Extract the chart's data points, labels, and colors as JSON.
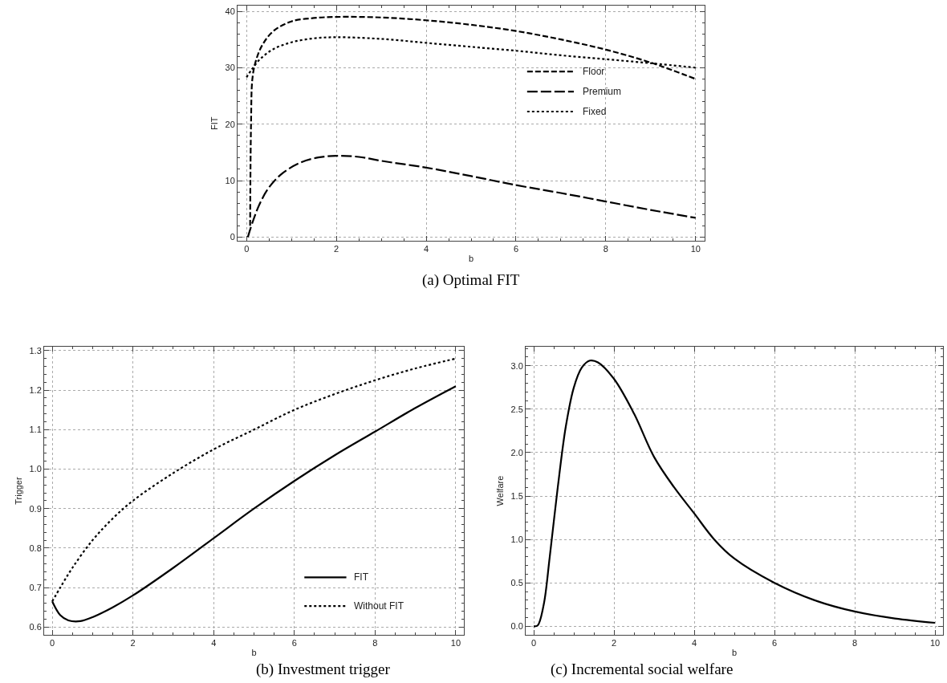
{
  "chart_data": [
    {
      "type": "line",
      "xlabel": "b",
      "ylabel": "FIT",
      "annotations": [
        "(a) Optimal FIT"
      ],
      "xlim": [
        -0.2,
        10.2
      ],
      "ylim": [
        -0.7,
        41
      ],
      "xticks": [
        0,
        2,
        4,
        6,
        8,
        10
      ],
      "yticks": [
        0,
        10,
        20,
        30,
        40
      ],
      "grid": true,
      "legend": "right",
      "series": [
        {
          "name": "Floor",
          "color": "#000000",
          "line_style": "dashed",
          "x": [
            0.08,
            0.1,
            0.13,
            0.2,
            0.35,
            0.6,
            1,
            1.5,
            2,
            3,
            4,
            5,
            6,
            7,
            8,
            9,
            10
          ],
          "values": [
            2,
            20,
            28,
            31,
            34,
            36.5,
            38.2,
            38.8,
            39,
            38.9,
            38.4,
            37.6,
            36.5,
            35,
            33.2,
            30.9,
            28
          ]
        },
        {
          "name": "Premium",
          "color": "#000000",
          "line_style": "longdash",
          "x": [
            0.03,
            0.15,
            0.3,
            0.5,
            0.8,
            1.2,
            1.6,
            2,
            2.5,
            3,
            4,
            5,
            6,
            7,
            8,
            9,
            10
          ],
          "values": [
            0,
            3,
            6,
            8.8,
            11.3,
            13.2,
            14.1,
            14.4,
            14.2,
            13.5,
            12.3,
            10.8,
            9.2,
            7.8,
            6.3,
            4.8,
            3.4
          ]
        },
        {
          "name": "Fixed",
          "color": "#000000",
          "line_style": "dotted",
          "x": [
            0,
            0.1,
            0.3,
            0.6,
            1,
            1.5,
            2,
            3,
            4,
            5,
            6,
            7,
            8,
            9,
            10
          ],
          "values": [
            28.3,
            29.5,
            31.5,
            33.3,
            34.5,
            35.2,
            35.4,
            35.1,
            34.4,
            33.7,
            33,
            32.2,
            31.5,
            30.8,
            30
          ]
        }
      ]
    },
    {
      "type": "line",
      "xlabel": "b",
      "ylabel": "Trigger",
      "annotations": [
        "(b) Investment trigger"
      ],
      "xlim": [
        -0.2,
        10.2
      ],
      "ylim": [
        0.58,
        1.31
      ],
      "xticks": [
        0,
        2,
        4,
        6,
        8,
        10
      ],
      "yticks": [
        0.6,
        0.7,
        0.8,
        0.9,
        {
          "value": 1.0,
          "label": "1.0"
        },
        1.1,
        1.2,
        1.3
      ],
      "grid": true,
      "legend": "bottom right",
      "series": [
        {
          "name": "FIT",
          "color": "#000000",
          "line_style": "solid",
          "x": [
            0,
            0.2,
            0.4,
            0.7,
            1,
            1.5,
            2,
            3,
            4,
            5,
            6,
            7,
            8,
            9,
            10
          ],
          "values": [
            0.665,
            0.63,
            0.617,
            0.615,
            0.625,
            0.65,
            0.68,
            0.75,
            0.825,
            0.9,
            0.97,
            1.035,
            1.095,
            1.155,
            1.21
          ]
        },
        {
          "name": "Without FIT",
          "color": "#000000",
          "line_style": "dotted",
          "x": [
            0,
            0.2,
            0.5,
            1,
            1.5,
            2,
            3,
            4,
            5,
            6,
            7,
            8,
            9,
            10
          ],
          "values": [
            0.665,
            0.7,
            0.75,
            0.82,
            0.875,
            0.92,
            0.99,
            1.05,
            1.1,
            1.15,
            1.19,
            1.225,
            1.255,
            1.28
          ]
        }
      ]
    },
    {
      "type": "line",
      "xlabel": "b",
      "ylabel": "Welfare",
      "annotations": [
        "(c) Incremental social welfare"
      ],
      "xlim": [
        -0.2,
        10.2
      ],
      "ylim": [
        -0.1,
        3.22
      ],
      "xticks": [
        0,
        2,
        4,
        6,
        8,
        10
      ],
      "yticks": [
        {
          "value": 0,
          "label": "0.0"
        },
        0.5,
        {
          "value": 1,
          "label": "1.0"
        },
        1.5,
        {
          "value": 2,
          "label": "2.0"
        },
        2.5,
        {
          "value": 3,
          "label": "3.0"
        }
      ],
      "grid": true,
      "series": [
        {
          "color": "#000000",
          "line_style": "solid",
          "x": [
            0,
            0.1,
            0.25,
            0.4,
            0.6,
            0.8,
            1,
            1.2,
            1.4,
            1.6,
            2,
            2.5,
            3,
            3.5,
            4,
            4.5,
            5,
            6,
            7,
            8,
            9,
            10
          ],
          "values": [
            0,
            0.01,
            0.25,
            0.8,
            1.6,
            2.3,
            2.75,
            2.98,
            3.06,
            3.04,
            2.85,
            2.45,
            1.95,
            1.6,
            1.3,
            1.0,
            0.78,
            0.5,
            0.3,
            0.17,
            0.09,
            0.04
          ]
        }
      ]
    }
  ]
}
